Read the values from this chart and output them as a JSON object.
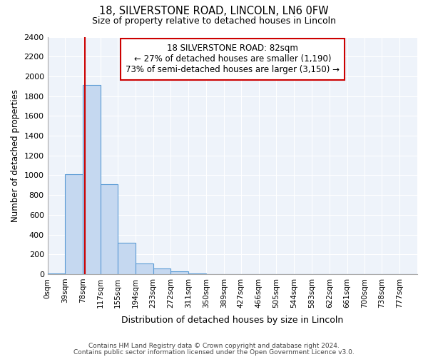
{
  "title1": "18, SILVERSTONE ROAD, LINCOLN, LN6 0FW",
  "title2": "Size of property relative to detached houses in Lincoln",
  "xlabel": "Distribution of detached houses by size in Lincoln",
  "ylabel": "Number of detached properties",
  "bin_labels": [
    "0sqm",
    "39sqm",
    "78sqm",
    "117sqm",
    "155sqm",
    "194sqm",
    "233sqm",
    "272sqm",
    "311sqm",
    "350sqm",
    "389sqm",
    "427sqm",
    "466sqm",
    "505sqm",
    "544sqm",
    "583sqm",
    "622sqm",
    "661sqm",
    "700sqm",
    "738sqm",
    "777sqm"
  ],
  "bin_edges": [
    0,
    39,
    78,
    117,
    155,
    194,
    233,
    272,
    311,
    350,
    389,
    427,
    466,
    505,
    544,
    583,
    622,
    661,
    700,
    738,
    777,
    816
  ],
  "bar_heights": [
    10,
    1010,
    1910,
    910,
    320,
    105,
    55,
    30,
    10,
    0,
    0,
    0,
    0,
    0,
    0,
    0,
    0,
    0,
    0,
    0,
    0
  ],
  "bar_color": "#c5d8f0",
  "bar_edge_color": "#5b9bd5",
  "property_line_x": 82,
  "property_line_color": "#cc0000",
  "annotation_line1": "18 SILVERSTONE ROAD: 82sqm",
  "annotation_line2": "← 27% of detached houses are smaller (1,190)",
  "annotation_line3": "73% of semi-detached houses are larger (3,150) →",
  "annotation_box_color": "#ffffff",
  "annotation_box_edge": "#cc0000",
  "ylim": [
    0,
    2400
  ],
  "yticks": [
    0,
    200,
    400,
    600,
    800,
    1000,
    1200,
    1400,
    1600,
    1800,
    2000,
    2200,
    2400
  ],
  "footer1": "Contains HM Land Registry data © Crown copyright and database right 2024.",
  "footer2": "Contains public sector information licensed under the Open Government Licence v3.0.",
  "background_color": "#ffffff",
  "plot_bg_color": "#eef3fa",
  "grid_color": "#ffffff"
}
